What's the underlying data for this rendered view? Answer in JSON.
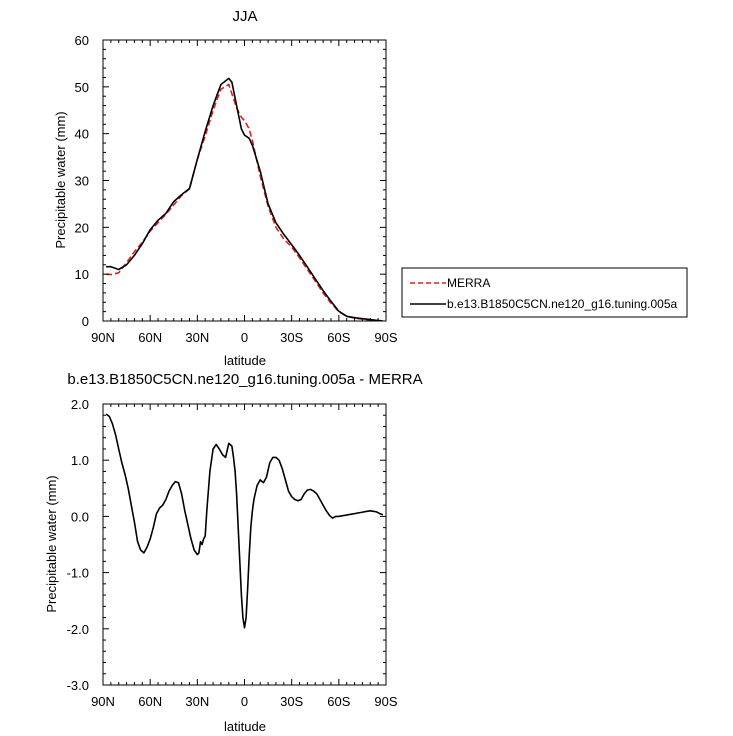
{
  "chart_data": [
    {
      "type": "line",
      "title": "JJA",
      "xlabel": "latitude",
      "ylabel": "Precipitable water (mm)",
      "xlim": [
        90,
        -90
      ],
      "ylim": [
        0,
        60
      ],
      "x_ticks": [
        90,
        60,
        30,
        0,
        -30,
        -60,
        -90
      ],
      "x_tick_labels": [
        "90N",
        "60N",
        "30N",
        "0",
        "30S",
        "60S",
        "90S"
      ],
      "y_ticks": [
        0,
        10,
        20,
        30,
        40,
        50,
        60
      ],
      "y_tick_labels": [
        "0",
        "10",
        "20",
        "30",
        "40",
        "50",
        "60"
      ],
      "legend_position": "right",
      "series": [
        {
          "name": "MERRA",
          "color": "#e02020",
          "dash": "dashed",
          "x": [
            88,
            85,
            80,
            75,
            70,
            65,
            60,
            55,
            50,
            45,
            40,
            35,
            30,
            25,
            20,
            15,
            10,
            5,
            2,
            0,
            -3,
            -5,
            -10,
            -15,
            -20,
            -25,
            -30,
            -35,
            -40,
            -45,
            -50,
            -55,
            -60,
            -65,
            -70,
            -75,
            -80,
            -85,
            -88
          ],
          "y": [
            10.0,
            9.9,
            10.3,
            12.5,
            14.8,
            16.8,
            19.2,
            21.0,
            22.8,
            24.8,
            26.8,
            28.2,
            34.5,
            39.5,
            45.0,
            49.5,
            50.5,
            45.5,
            43.5,
            42.8,
            41.0,
            38.5,
            31.0,
            24.5,
            20.0,
            17.5,
            15.8,
            13.5,
            11.0,
            8.5,
            6.0,
            3.8,
            2.0,
            1.0,
            0.6,
            0.4,
            0.2,
            0.1,
            0.0
          ]
        },
        {
          "name": "b.e13.B1850C5CN.ne120_g16.tuning.005a",
          "color": "#000000",
          "dash": "solid",
          "x": [
            88,
            85,
            80,
            75,
            70,
            65,
            60,
            55,
            50,
            45,
            40,
            35,
            30,
            25,
            20,
            15,
            10,
            8,
            5,
            2,
            0,
            -3,
            -5,
            -10,
            -15,
            -20,
            -25,
            -30,
            -35,
            -40,
            -45,
            -50,
            -55,
            -60,
            -65,
            -70,
            -75,
            -80,
            -85,
            -88
          ],
          "y": [
            11.6,
            11.6,
            11.0,
            12.0,
            14.0,
            16.5,
            19.5,
            21.5,
            23.0,
            25.5,
            27.0,
            28.3,
            34.5,
            40.5,
            46.0,
            50.5,
            51.8,
            51.0,
            46.0,
            41.0,
            39.7,
            39.0,
            37.5,
            32.0,
            25.0,
            21.0,
            18.5,
            16.3,
            14.0,
            11.5,
            9.0,
            6.5,
            4.2,
            2.1,
            1.0,
            0.7,
            0.5,
            0.3,
            0.1,
            0.0
          ]
        }
      ]
    },
    {
      "type": "line",
      "title": "b.e13.B1850C5CN.ne120_g16.tuning.005a - MERRA",
      "xlabel": "latitude",
      "ylabel": "Precipitable water (mm)",
      "xlim": [
        90,
        -90
      ],
      "ylim": [
        -3,
        2
      ],
      "x_ticks": [
        90,
        60,
        30,
        0,
        -30,
        -60,
        -90
      ],
      "x_tick_labels": [
        "90N",
        "60N",
        "30N",
        "0",
        "30S",
        "60S",
        "90S"
      ],
      "y_ticks": [
        2,
        1,
        0,
        -1,
        -2,
        -3
      ],
      "y_tick_labels": [
        "2.0",
        "1.0",
        "0.0",
        "-1.0",
        "-2.0",
        "-3.0"
      ],
      "series": [
        {
          "color": "#000000",
          "dash": "solid",
          "x": [
            88,
            86,
            84,
            82,
            80,
            78,
            76,
            74,
            72,
            70,
            68,
            66,
            64,
            62,
            60,
            58,
            56,
            54,
            52,
            50,
            48,
            46,
            44,
            42,
            40,
            38,
            36,
            34,
            32,
            30,
            29,
            28,
            27,
            26,
            25,
            24,
            22,
            20,
            18,
            16,
            14,
            12,
            10,
            8,
            7,
            6,
            5,
            4,
            3,
            2,
            1,
            0,
            -1,
            -2,
            -3,
            -4,
            -5,
            -6,
            -8,
            -10,
            -12,
            -14,
            -16,
            -18,
            -20,
            -22,
            -24,
            -26,
            -28,
            -30,
            -32,
            -34,
            -36,
            -38,
            -40,
            -42,
            -44,
            -46,
            -48,
            -50,
            -52,
            -54,
            -56,
            -58,
            -60,
            -62,
            -64,
            -66,
            -68,
            -70,
            -72,
            -74,
            -76,
            -78,
            -80,
            -82,
            -84,
            -86,
            -88
          ],
          "y": [
            1.82,
            1.78,
            1.65,
            1.45,
            1.2,
            0.95,
            0.75,
            0.5,
            0.2,
            -0.1,
            -0.45,
            -0.6,
            -0.65,
            -0.55,
            -0.4,
            -0.2,
            0.05,
            0.15,
            0.2,
            0.3,
            0.45,
            0.55,
            0.62,
            0.6,
            0.4,
            0.1,
            -0.15,
            -0.4,
            -0.6,
            -0.68,
            -0.65,
            -0.45,
            -0.5,
            -0.4,
            -0.35,
            0.1,
            0.8,
            1.2,
            1.28,
            1.2,
            1.1,
            1.05,
            1.3,
            1.25,
            1.05,
            0.8,
            0.4,
            -0.2,
            -0.8,
            -1.4,
            -1.8,
            -1.98,
            -1.8,
            -1.3,
            -0.7,
            -0.2,
            0.1,
            0.3,
            0.55,
            0.65,
            0.6,
            0.7,
            0.95,
            1.05,
            1.05,
            1.0,
            0.85,
            0.65,
            0.45,
            0.35,
            0.3,
            0.28,
            0.3,
            0.4,
            0.47,
            0.48,
            0.45,
            0.4,
            0.3,
            0.2,
            0.1,
            0.02,
            -0.03,
            0.0,
            0.0,
            0.01,
            0.02,
            0.03,
            0.04,
            0.05,
            0.06,
            0.07,
            0.08,
            0.09,
            0.1,
            0.09,
            0.08,
            0.05,
            0.03
          ]
        }
      ]
    }
  ]
}
